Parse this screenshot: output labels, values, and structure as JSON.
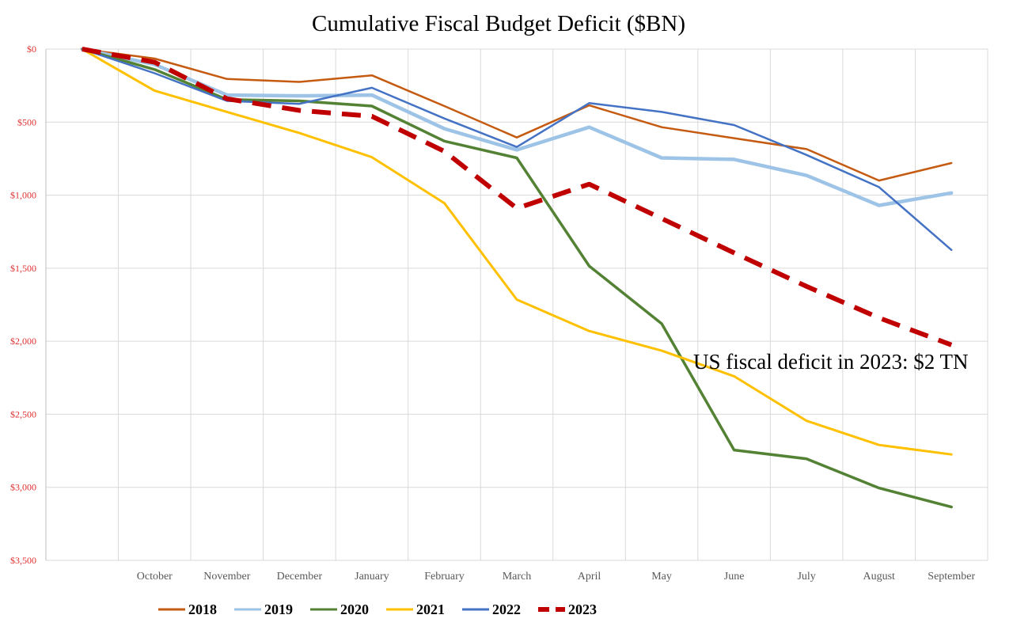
{
  "chart_data": {
    "type": "line",
    "title": "Cumulative Fiscal Budget Deficit ($BN)",
    "xlabel": "",
    "ylabel": "",
    "categories": [
      "",
      "October",
      "November",
      "December",
      "January",
      "February",
      "March",
      "April",
      "May",
      "June",
      "July",
      "August",
      "September"
    ],
    "y_tick_values": [
      0,
      500,
      1000,
      1500,
      2000,
      2500,
      3000,
      3500
    ],
    "y_tick_labels": [
      "$0",
      "$500",
      "$1,000",
      "$1,500",
      "$2,000",
      "$2,500",
      "$3,000",
      "$3,500"
    ],
    "ylim": [
      0,
      3500
    ],
    "y_inverted": true,
    "grid": true,
    "legend_position": "bottom",
    "annotation": "US fiscal deficit in 2023: $2 TN",
    "series": [
      {
        "name": "2018",
        "color": "#c55a11",
        "style": "solid",
        "width": 2.5,
        "values": [
          0,
          65,
          205,
          225,
          180,
          390,
          605,
          385,
          535,
          610,
          685,
          900,
          780
        ]
      },
      {
        "name": "2019",
        "color": "#9dc3e6",
        "style": "solid",
        "width": 4.5,
        "values": [
          0,
          105,
          315,
          320,
          315,
          545,
          690,
          535,
          745,
          755,
          865,
          1070,
          985
        ]
      },
      {
        "name": "2020",
        "color": "#548235",
        "style": "solid",
        "width": 3.5,
        "values": [
          0,
          140,
          345,
          355,
          390,
          630,
          745,
          1485,
          1880,
          2745,
          2805,
          3005,
          3135
        ]
      },
      {
        "name": "2021",
        "color": "#ffc000",
        "style": "solid",
        "width": 3,
        "values": [
          0,
          285,
          430,
          575,
          740,
          1055,
          1715,
          1930,
          2065,
          2240,
          2545,
          2710,
          2775
        ]
      },
      {
        "name": "2022",
        "color": "#4472c4",
        "style": "solid",
        "width": 2.5,
        "values": [
          0,
          165,
          355,
          375,
          265,
          475,
          670,
          370,
          430,
          520,
          725,
          945,
          1375
        ]
      },
      {
        "name": "2023",
        "color": "#c00000",
        "style": "dashed",
        "width": 6,
        "values": [
          0,
          90,
          340,
          420,
          460,
          700,
          1090,
          925,
          1160,
          1395,
          1625,
          1840,
          2025
        ]
      }
    ]
  }
}
